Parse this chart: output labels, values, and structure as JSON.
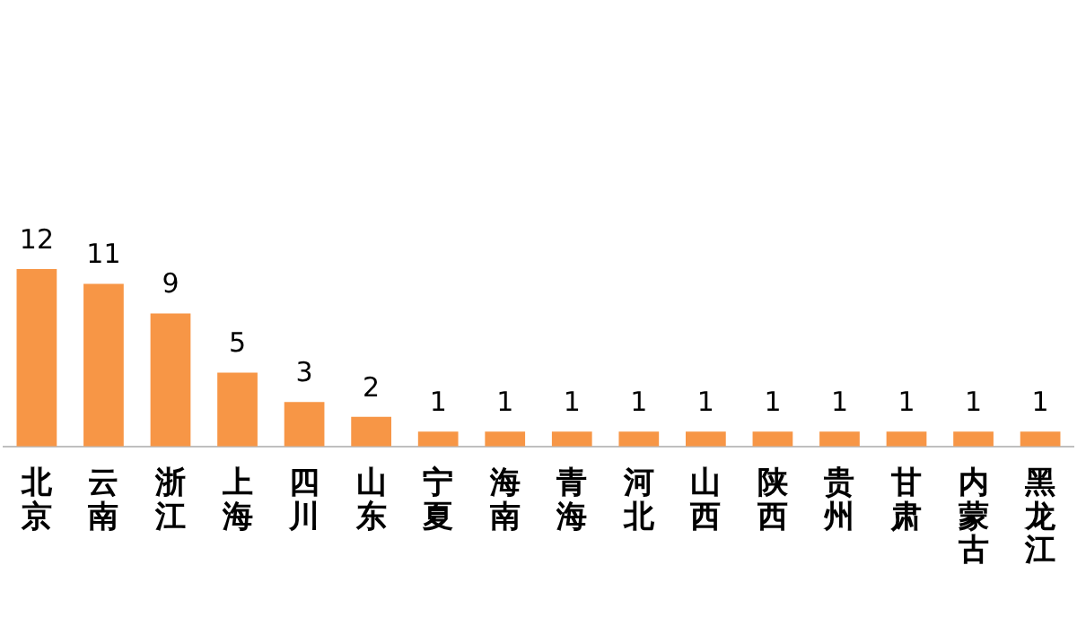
{
  "chart_data": {
    "type": "bar",
    "categories": [
      "北京",
      "云南",
      "浙江",
      "上海",
      "四川",
      "山东",
      "宁夏",
      "海南",
      "青海",
      "河北",
      "山西",
      "陕西",
      "贵州",
      "甘肃",
      "内蒙古",
      "黑龙江"
    ],
    "values": [
      12,
      11,
      9,
      5,
      3,
      2,
      1,
      1,
      1,
      1,
      1,
      1,
      1,
      1,
      1,
      1
    ],
    "color": "#f79646",
    "data_labels": true,
    "grid": false,
    "legend": false
  }
}
